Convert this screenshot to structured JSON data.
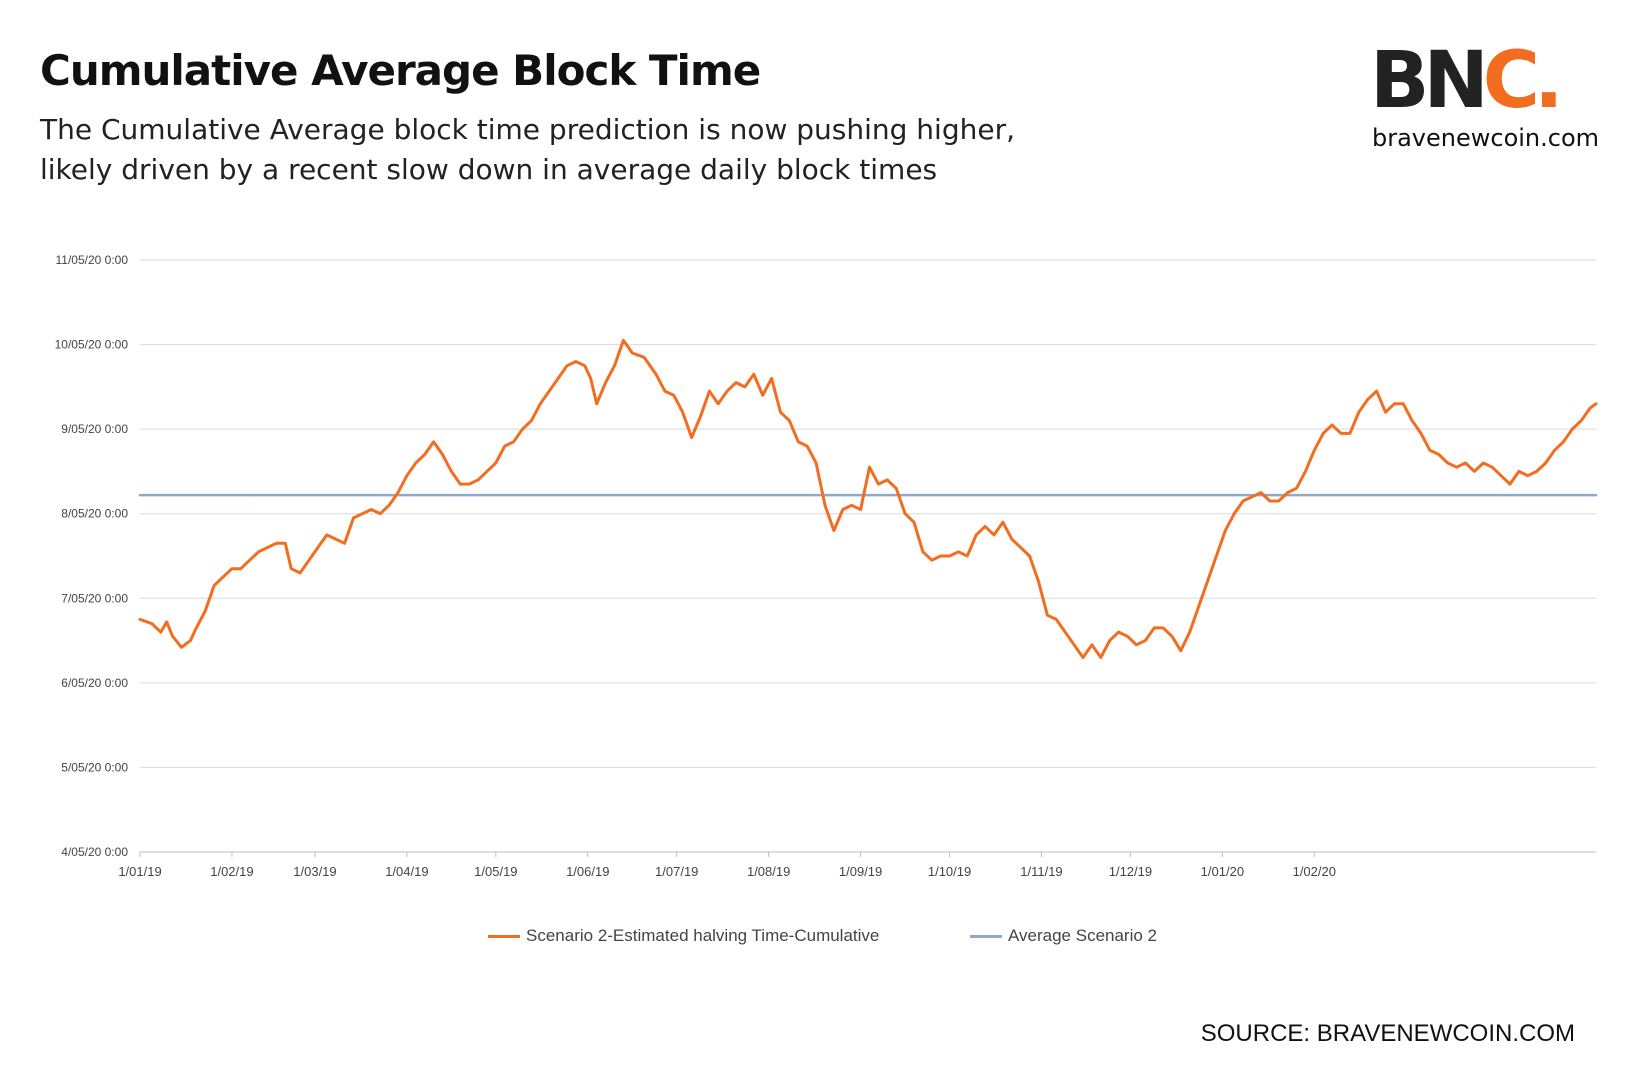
{
  "header": {
    "title": "Cumulative Average Block Time",
    "subtitle_line1": "The Cumulative Average block time prediction is now pushing higher,",
    "subtitle_line2": "likely driven by a recent slow down in average daily block times"
  },
  "logo": {
    "letters_main": "BN",
    "letters_accent": "C.",
    "url": "bravenewcoin.com",
    "accent_color": "#f36d21"
  },
  "footer": {
    "source": "SOURCE: BRAVENEWCOIN.COM"
  },
  "colors": {
    "series_1": "#f36d21",
    "series_2": "#8fa8c8",
    "grid": "#d9d9d9"
  },
  "chart_data": {
    "type": "line",
    "title": "",
    "xlabel": "",
    "ylabel": "",
    "y_tick_labels": [
      "4/05/20 0:00",
      "5/05/20 0:00",
      "6/05/20 0:00",
      "7/05/20 0:00",
      "8/05/20 0:00",
      "9/05/20 0:00",
      "10/05/20 0:00",
      "11/05/20 0:00"
    ],
    "x_tick_labels": [
      "1/01/19",
      "1/02/19",
      "1/03/19",
      "1/04/19",
      "1/05/19",
      "1/06/19",
      "1/07/19",
      "1/08/19",
      "1/09/19",
      "1/10/19",
      "1/11/19",
      "1/12/19",
      "1/01/20",
      "1/02/20"
    ],
    "ylim_days": [
      4,
      11
    ],
    "grid": true,
    "legend_position": "bottom",
    "series": [
      {
        "name": "Scenario 2-Estimated halving Time-Cumulative",
        "color": "#f36d21",
        "points": [
          [
            "2019-01-01",
            6.75
          ],
          [
            "2019-01-05",
            6.7
          ],
          [
            "2019-01-08",
            6.6
          ],
          [
            "2019-01-10",
            6.72
          ],
          [
            "2019-01-12",
            6.55
          ],
          [
            "2019-01-15",
            6.42
          ],
          [
            "2019-01-18",
            6.5
          ],
          [
            "2019-01-20",
            6.65
          ],
          [
            "2019-01-23",
            6.85
          ],
          [
            "2019-01-26",
            7.15
          ],
          [
            "2019-01-29",
            7.25
          ],
          [
            "2019-02-01",
            7.35
          ],
          [
            "2019-02-04",
            7.35
          ],
          [
            "2019-02-07",
            7.45
          ],
          [
            "2019-02-10",
            7.55
          ],
          [
            "2019-02-13",
            7.6
          ],
          [
            "2019-02-16",
            7.65
          ],
          [
            "2019-02-19",
            7.65
          ],
          [
            "2019-02-21",
            7.35
          ],
          [
            "2019-02-24",
            7.3
          ],
          [
            "2019-02-27",
            7.45
          ],
          [
            "2019-03-02",
            7.6
          ],
          [
            "2019-03-05",
            7.75
          ],
          [
            "2019-03-08",
            7.7
          ],
          [
            "2019-03-11",
            7.65
          ],
          [
            "2019-03-14",
            7.95
          ],
          [
            "2019-03-17",
            8.0
          ],
          [
            "2019-03-20",
            8.05
          ],
          [
            "2019-03-23",
            8.0
          ],
          [
            "2019-03-26",
            8.1
          ],
          [
            "2019-03-29",
            8.25
          ],
          [
            "2019-04-01",
            8.45
          ],
          [
            "2019-04-04",
            8.6
          ],
          [
            "2019-04-07",
            8.7
          ],
          [
            "2019-04-10",
            8.85
          ],
          [
            "2019-04-13",
            8.7
          ],
          [
            "2019-04-16",
            8.5
          ],
          [
            "2019-04-19",
            8.35
          ],
          [
            "2019-04-22",
            8.35
          ],
          [
            "2019-04-25",
            8.4
          ],
          [
            "2019-04-28",
            8.5
          ],
          [
            "2019-05-01",
            8.6
          ],
          [
            "2019-05-04",
            8.8
          ],
          [
            "2019-05-07",
            8.85
          ],
          [
            "2019-05-10",
            9.0
          ],
          [
            "2019-05-13",
            9.1
          ],
          [
            "2019-05-16",
            9.3
          ],
          [
            "2019-05-19",
            9.45
          ],
          [
            "2019-05-22",
            9.6
          ],
          [
            "2019-05-25",
            9.75
          ],
          [
            "2019-05-28",
            9.8
          ],
          [
            "2019-05-31",
            9.75
          ],
          [
            "2019-06-02",
            9.6
          ],
          [
            "2019-06-04",
            9.3
          ],
          [
            "2019-06-07",
            9.55
          ],
          [
            "2019-06-10",
            9.75
          ],
          [
            "2019-06-13",
            10.05
          ],
          [
            "2019-06-16",
            9.9
          ],
          [
            "2019-06-20",
            9.85
          ],
          [
            "2019-06-24",
            9.65
          ],
          [
            "2019-06-27",
            9.45
          ],
          [
            "2019-06-30",
            9.4
          ],
          [
            "2019-07-03",
            9.2
          ],
          [
            "2019-07-06",
            8.9
          ],
          [
            "2019-07-09",
            9.15
          ],
          [
            "2019-07-12",
            9.45
          ],
          [
            "2019-07-15",
            9.3
          ],
          [
            "2019-07-18",
            9.45
          ],
          [
            "2019-07-21",
            9.55
          ],
          [
            "2019-07-24",
            9.5
          ],
          [
            "2019-07-27",
            9.65
          ],
          [
            "2019-07-30",
            9.4
          ],
          [
            "2019-08-02",
            9.6
          ],
          [
            "2019-08-05",
            9.2
          ],
          [
            "2019-08-08",
            9.1
          ],
          [
            "2019-08-11",
            8.85
          ],
          [
            "2019-08-14",
            8.8
          ],
          [
            "2019-08-17",
            8.6
          ],
          [
            "2019-08-20",
            8.1
          ],
          [
            "2019-08-23",
            7.8
          ],
          [
            "2019-08-26",
            8.05
          ],
          [
            "2019-08-29",
            8.1
          ],
          [
            "2019-09-01",
            8.05
          ],
          [
            "2019-09-04",
            8.55
          ],
          [
            "2019-09-07",
            8.35
          ],
          [
            "2019-09-10",
            8.4
          ],
          [
            "2019-09-13",
            8.3
          ],
          [
            "2019-09-16",
            8.0
          ],
          [
            "2019-09-19",
            7.9
          ],
          [
            "2019-09-22",
            7.55
          ],
          [
            "2019-09-25",
            7.45
          ],
          [
            "2019-09-28",
            7.5
          ],
          [
            "2019-10-01",
            7.5
          ],
          [
            "2019-10-04",
            7.55
          ],
          [
            "2019-10-07",
            7.5
          ],
          [
            "2019-10-10",
            7.75
          ],
          [
            "2019-10-13",
            7.85
          ],
          [
            "2019-10-16",
            7.75
          ],
          [
            "2019-10-19",
            7.9
          ],
          [
            "2019-10-22",
            7.7
          ],
          [
            "2019-10-25",
            7.6
          ],
          [
            "2019-10-28",
            7.5
          ],
          [
            "2019-10-31",
            7.2
          ],
          [
            "2019-11-03",
            6.8
          ],
          [
            "2019-11-06",
            6.75
          ],
          [
            "2019-11-09",
            6.6
          ],
          [
            "2019-11-12",
            6.45
          ],
          [
            "2019-11-15",
            6.3
          ],
          [
            "2019-11-18",
            6.45
          ],
          [
            "2019-11-21",
            6.3
          ],
          [
            "2019-11-24",
            6.5
          ],
          [
            "2019-11-27",
            6.6
          ],
          [
            "2019-11-30",
            6.55
          ],
          [
            "2019-12-03",
            6.45
          ],
          [
            "2019-12-06",
            6.5
          ],
          [
            "2019-12-09",
            6.65
          ],
          [
            "2019-12-12",
            6.65
          ],
          [
            "2019-12-15",
            6.55
          ],
          [
            "2019-12-18",
            6.38
          ],
          [
            "2019-12-21",
            6.6
          ],
          [
            "2019-12-24",
            6.9
          ],
          [
            "2019-12-27",
            7.2
          ],
          [
            "2019-12-30",
            7.5
          ],
          [
            "2020-01-02",
            7.8
          ],
          [
            "2020-01-05",
            8.0
          ],
          [
            "2020-01-08",
            8.15
          ],
          [
            "2020-01-11",
            8.2
          ],
          [
            "2020-01-14",
            8.25
          ],
          [
            "2020-01-17",
            8.15
          ],
          [
            "2020-01-20",
            8.15
          ],
          [
            "2020-01-23",
            8.25
          ],
          [
            "2020-01-26",
            8.3
          ],
          [
            "2020-01-29",
            8.5
          ],
          [
            "2020-02-01",
            8.75
          ],
          [
            "2020-02-04",
            8.95
          ],
          [
            "2020-02-07",
            9.05
          ],
          [
            "2020-02-10",
            8.95
          ],
          [
            "2020-02-13",
            8.95
          ],
          [
            "2020-02-16",
            9.2
          ],
          [
            "2020-02-19",
            9.35
          ],
          [
            "2020-02-22",
            9.45
          ],
          [
            "2020-02-25",
            9.2
          ],
          [
            "2020-02-28",
            9.3
          ],
          [
            "2020-03-02",
            9.3
          ],
          [
            "2020-03-05",
            9.1
          ],
          [
            "2020-03-08",
            8.95
          ],
          [
            "2020-03-11",
            8.75
          ],
          [
            "2020-03-14",
            8.7
          ],
          [
            "2020-03-17",
            8.6
          ],
          [
            "2020-03-20",
            8.55
          ],
          [
            "2020-03-23",
            8.6
          ],
          [
            "2020-03-26",
            8.5
          ],
          [
            "2020-03-29",
            8.6
          ],
          [
            "2020-04-01",
            8.55
          ],
          [
            "2020-04-04",
            8.45
          ],
          [
            "2020-04-07",
            8.35
          ],
          [
            "2020-04-10",
            8.5
          ],
          [
            "2020-04-13",
            8.45
          ],
          [
            "2020-04-16",
            8.5
          ],
          [
            "2020-04-19",
            8.6
          ],
          [
            "2020-04-22",
            8.75
          ],
          [
            "2020-04-25",
            8.85
          ],
          [
            "2020-04-28",
            9.0
          ],
          [
            "2020-05-01",
            9.1
          ],
          [
            "2020-05-04",
            9.25
          ],
          [
            "2020-05-06",
            9.3
          ]
        ]
      },
      {
        "name": "Average Scenario 2",
        "color": "#8fa8c8",
        "points": [
          [
            "2019-01-01",
            8.22
          ],
          [
            "2020-05-06",
            8.22
          ]
        ]
      }
    ]
  }
}
